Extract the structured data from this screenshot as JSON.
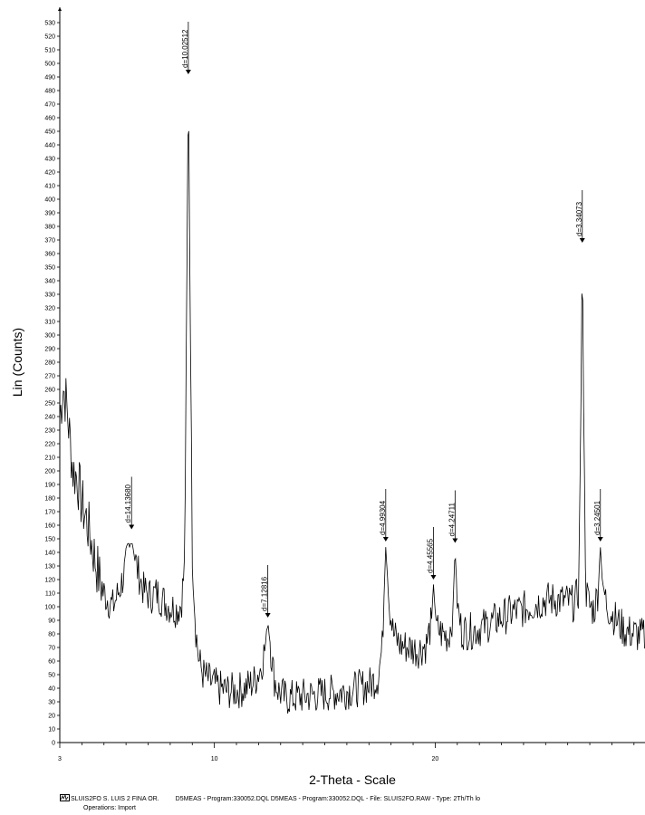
{
  "chart_data": {
    "type": "line",
    "ylabel": "Lin (Counts)",
    "xlabel": "2-Theta - Scale",
    "xlim": [
      3,
      29.5
    ],
    "ylim": [
      0,
      535
    ],
    "y_ticks": [
      0,
      10,
      20,
      30,
      40,
      50,
      60,
      70,
      80,
      90,
      100,
      110,
      120,
      130,
      140,
      150,
      160,
      170,
      180,
      190,
      200,
      210,
      220,
      230,
      240,
      250,
      260,
      270,
      280,
      290,
      300,
      310,
      320,
      330,
      340,
      350,
      360,
      370,
      380,
      390,
      400,
      410,
      420,
      430,
      440,
      450,
      460,
      470,
      480,
      490,
      500,
      510,
      520,
      530
    ],
    "x_ticks_labeled": [
      3,
      10,
      20
    ],
    "x_ticks_minor": [
      4,
      5,
      6,
      7,
      8,
      9,
      11,
      12,
      13,
      14,
      15,
      16,
      17,
      18,
      19,
      21,
      22,
      23,
      24,
      25,
      26,
      27,
      28,
      29
    ],
    "peaks": [
      {
        "two_theta": 6.25,
        "counts": 157,
        "label": "d=14.13680"
      },
      {
        "two_theta": 8.82,
        "counts": 492,
        "label": "d=10.02512"
      },
      {
        "two_theta": 12.42,
        "counts": 92,
        "label": "d=7.12816"
      },
      {
        "two_theta": 17.76,
        "counts": 148,
        "label": "d=4.99304"
      },
      {
        "two_theta": 19.92,
        "counts": 120,
        "label": "d=4.45565"
      },
      {
        "two_theta": 20.9,
        "counts": 147,
        "label": "d=4.24711"
      },
      {
        "two_theta": 26.66,
        "counts": 368,
        "label": "d=3.34073"
      },
      {
        "two_theta": 27.48,
        "counts": 148,
        "label": "d=3.24501"
      }
    ],
    "background": [
      [
        3.0,
        240
      ],
      [
        3.15,
        262
      ],
      [
        3.3,
        250
      ],
      [
        3.45,
        225
      ],
      [
        3.6,
        200
      ],
      [
        3.8,
        195
      ],
      [
        4.0,
        175
      ],
      [
        4.2,
        165
      ],
      [
        4.4,
        150
      ],
      [
        4.6,
        135
      ],
      [
        4.8,
        120
      ],
      [
        5.0,
        110
      ],
      [
        5.2,
        105
      ],
      [
        5.4,
        100
      ],
      [
        5.6,
        108
      ],
      [
        5.8,
        118
      ],
      [
        6.0,
        130
      ],
      [
        6.25,
        150
      ],
      [
        6.5,
        128
      ],
      [
        6.8,
        112
      ],
      [
        7.1,
        108
      ],
      [
        7.4,
        110
      ],
      [
        7.7,
        104
      ],
      [
        8.0,
        100
      ],
      [
        8.3,
        98
      ],
      [
        8.5,
        102
      ],
      [
        8.65,
        130
      ],
      [
        8.75,
        330
      ],
      [
        8.82,
        492
      ],
      [
        8.9,
        330
      ],
      [
        9.0,
        140
      ],
      [
        9.15,
        85
      ],
      [
        9.3,
        60
      ],
      [
        9.5,
        50
      ],
      [
        9.8,
        45
      ],
      [
        10.2,
        40
      ],
      [
        10.6,
        38
      ],
      [
        11.0,
        38
      ],
      [
        11.4,
        40
      ],
      [
        11.8,
        45
      ],
      [
        12.1,
        55
      ],
      [
        12.3,
        70
      ],
      [
        12.42,
        90
      ],
      [
        12.55,
        70
      ],
      [
        12.7,
        48
      ],
      [
        12.9,
        38
      ],
      [
        13.2,
        33
      ],
      [
        13.6,
        33
      ],
      [
        14.0,
        34
      ],
      [
        14.5,
        35
      ],
      [
        15.0,
        36
      ],
      [
        15.5,
        37
      ],
      [
        16.0,
        38
      ],
      [
        16.5,
        40
      ],
      [
        17.0,
        42
      ],
      [
        17.4,
        48
      ],
      [
        17.6,
        70
      ],
      [
        17.76,
        146
      ],
      [
        17.9,
        105
      ],
      [
        18.1,
        80
      ],
      [
        18.4,
        72
      ],
      [
        18.8,
        70
      ],
      [
        19.2,
        68
      ],
      [
        19.6,
        72
      ],
      [
        19.85,
        90
      ],
      [
        19.92,
        118
      ],
      [
        20.05,
        85
      ],
      [
        20.3,
        80
      ],
      [
        20.6,
        78
      ],
      [
        20.8,
        95
      ],
      [
        20.9,
        146
      ],
      [
        21.0,
        100
      ],
      [
        21.2,
        82
      ],
      [
        21.6,
        82
      ],
      [
        22.0,
        84
      ],
      [
        22.5,
        88
      ],
      [
        23.0,
        92
      ],
      [
        23.5,
        96
      ],
      [
        24.0,
        98
      ],
      [
        24.5,
        102
      ],
      [
        25.0,
        105
      ],
      [
        25.5,
        105
      ],
      [
        26.0,
        104
      ],
      [
        26.3,
        102
      ],
      [
        26.5,
        112
      ],
      [
        26.6,
        250
      ],
      [
        26.66,
        367
      ],
      [
        26.72,
        250
      ],
      [
        26.82,
        112
      ],
      [
        27.0,
        100
      ],
      [
        27.2,
        98
      ],
      [
        27.38,
        112
      ],
      [
        27.48,
        146
      ],
      [
        27.58,
        115
      ],
      [
        27.8,
        100
      ],
      [
        28.2,
        90
      ],
      [
        28.6,
        82
      ],
      [
        29.0,
        80
      ],
      [
        29.5,
        78
      ]
    ]
  },
  "footer": {
    "line1": "SLUIS2FO S. LUIS 2 FINA OR.",
    "line1b": "D5MEAS - Program:330052.DQL D5MEAS - Program:330052.DQL - File: SLUIS2FO.RAW - Type: 2Th/Th lo",
    "line2": "Operations: Import"
  }
}
